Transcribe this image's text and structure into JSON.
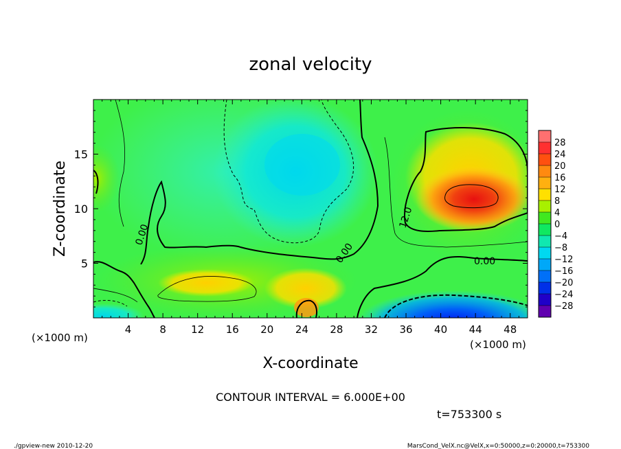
{
  "chart_data": {
    "type": "heatmap",
    "title": "zonal velocity",
    "xlabel": "X-coordinate",
    "ylabel": "Z-coordinate",
    "x_unit_label": "(×1000 m)",
    "y_unit_label": "(×1000 m)",
    "xlim": [
      0,
      50
    ],
    "ylim": [
      0,
      20
    ],
    "x_ticks": [
      "4",
      "8",
      "12",
      "16",
      "20",
      "24",
      "28",
      "32",
      "36",
      "40",
      "44",
      "48"
    ],
    "y_ticks": [
      "5",
      "10",
      "15"
    ],
    "colorbar_levels": [
      -28,
      -24,
      -20,
      -16,
      -12,
      -8,
      -4,
      0,
      4,
      8,
      12,
      16,
      20,
      24,
      28
    ],
    "colorbar_labels": [
      "28",
      "24",
      "20",
      "16",
      "12",
      "8",
      "4",
      "0",
      "−4",
      "−8",
      "−12",
      "−16",
      "−20",
      "−24",
      "−28"
    ],
    "contour_interval_text": "CONTOUR INTERVAL = 6.000E+00",
    "contour_labels": [
      "0.00",
      "0.00",
      "0.00",
      "12.0"
    ],
    "time_text": "t=753300 s",
    "features": [
      {
        "x": 43,
        "z": 11,
        "value": 18
      },
      {
        "x": 23,
        "z": 14,
        "value": -10
      },
      {
        "x": 41,
        "z": 1,
        "value": -20
      },
      {
        "x": 20,
        "z": 3,
        "value": 6
      },
      {
        "x": 2,
        "z": 11,
        "value": 6
      }
    ],
    "grid": false,
    "legend": "right"
  },
  "footer": {
    "left": "./gpview-new   2010-12-20",
    "right": "MarsCond_VelX.nc@VelX,x=0:50000,z=0:20000,t=753300"
  }
}
